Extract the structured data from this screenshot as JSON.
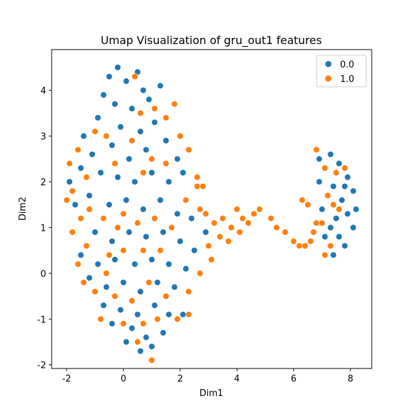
{
  "chart_data": {
    "type": "scatter",
    "title": "Umap Visualization of  gru_out1 features",
    "x_label": "Dim1",
    "y_label": "Dim2",
    "xlim": [
      -2.53,
      8.75
    ],
    "ylim": [
      -2.08,
      4.89
    ],
    "xticks": [
      -2,
      0,
      2,
      4,
      6,
      8
    ],
    "yticks": [
      -2,
      -1,
      0,
      1,
      2,
      3,
      4
    ],
    "grid": false,
    "legend": "upper right",
    "series": [
      {
        "name": "0.0",
        "color": "#1f77b4",
        "x": [
          -0.5,
          -0.2,
          0.1,
          0.5,
          0.7,
          -0.7,
          -0.3,
          0.3,
          0.9,
          1.3,
          1.1,
          0.6,
          -0.1,
          -0.9,
          -1.4,
          -1.1,
          -0.4,
          0.2,
          0.8,
          1.5,
          1.9,
          2.1,
          1.6,
          1.0,
          0.4,
          -0.2,
          -0.8,
          -1.5,
          -1.9,
          -1.7,
          -1.2,
          -0.5,
          0.1,
          0.7,
          1.3,
          1.9,
          2.4,
          2.9,
          2.5,
          2.0,
          1.4,
          0.8,
          0.2,
          -0.4,
          -1.0,
          -1.5,
          -0.9,
          -0.3,
          0.4,
          1.0,
          1.6,
          2.2,
          1.8,
          1.2,
          0.6,
          0.0,
          -0.6,
          -1.2,
          -0.7,
          -0.1,
          0.5,
          1.1,
          1.6,
          2.1,
          1.4,
          0.8,
          0.3,
          -0.4,
          0.6,
          1.0,
          0.1,
          6.9,
          7.3,
          7.6,
          7.9,
          8.1,
          8.2,
          8.1,
          7.8,
          7.4,
          7.1,
          7.0,
          6.9,
          7.4,
          7.7,
          7.5,
          7.9,
          7.3,
          7.6,
          7.8
        ],
        "values": [
          4.3,
          4.5,
          4.2,
          4.4,
          4.0,
          3.9,
          3.7,
          3.6,
          3.8,
          4.1,
          3.3,
          3.1,
          3.2,
          3.4,
          3.0,
          2.6,
          2.8,
          2.5,
          2.7,
          2.9,
          2.5,
          2.2,
          2.0,
          2.2,
          2.0,
          2.1,
          2.2,
          2.3,
          2.0,
          1.5,
          1.7,
          1.5,
          1.6,
          1.4,
          1.6,
          1.3,
          1.2,
          0.9,
          0.5,
          0.7,
          0.9,
          0.8,
          0.9,
          0.7,
          0.9,
          0.4,
          0.2,
          0.3,
          0.2,
          0.3,
          0.2,
          0.1,
          -0.3,
          -0.2,
          -0.4,
          -0.2,
          -0.3,
          -0.1,
          -0.7,
          -0.8,
          -0.9,
          -0.7,
          -0.9,
          -0.9,
          -1.3,
          -1.4,
          -1.2,
          -1.1,
          -1.7,
          -1.6,
          -1.5,
          2.5,
          2.6,
          2.4,
          2.1,
          1.8,
          1.4,
          1.0,
          0.6,
          0.4,
          0.8,
          1.4,
          2.0,
          1.9,
          1.6,
          1.2,
          1.3,
          1.0,
          0.8,
          1.9
        ]
      },
      {
        "name": "1.0",
        "color": "#ff7f0e",
        "x": [
          -1.9,
          -1.6,
          -1.3,
          -1.8,
          -2.0,
          -1.5,
          -1.8,
          -1.3,
          -1.6,
          -1.4,
          -1.0,
          -0.6,
          -0.2,
          -0.7,
          -0.3,
          0.3,
          0.6,
          1.1,
          1.5,
          1.8,
          2.0,
          2.3,
          0.4,
          -0.6,
          -1.0,
          -1.2,
          0.0,
          0.5,
          1.1,
          1.7,
          2.2,
          2.6,
          2.7,
          2.9,
          3.2,
          3.0,
          3.4,
          3.1,
          2.7,
          2.3,
          1.9,
          2.3,
          1.5,
          0.9,
          0.3,
          -0.3,
          -0.8,
          0.0,
          0.7,
          1.2,
          1.0,
          0.5,
          1.3,
          0.7,
          0.0,
          -0.5,
          1.0,
          0.7,
          1.5,
          2.6,
          2.8,
          3.5,
          3.8,
          4.0,
          4.2,
          4.4,
          4.6,
          4.8,
          5.2,
          5.4,
          5.7,
          6.0,
          6.2,
          6.4,
          6.6,
          6.7,
          6.5,
          6.8,
          3.7,
          4.1,
          6.3,
          6.8,
          7.1,
          7.5,
          7.2,
          7.0,
          7.3,
          7.6,
          7.8,
          7.1,
          7.4
        ],
        "values": [
          2.4,
          2.7,
          2.1,
          1.8,
          1.6,
          1.2,
          0.9,
          0.6,
          0.2,
          -0.2,
          -0.4,
          0.0,
          1.0,
          1.2,
          2.4,
          2.9,
          3.5,
          3.6,
          3.4,
          3.7,
          3.0,
          2.7,
          4.3,
          3.0,
          3.1,
          1.4,
          1.3,
          1.1,
          1.2,
          1.0,
          1.6,
          1.9,
          1.4,
          1.3,
          1.1,
          0.6,
          0.8,
          0.3,
          0.0,
          -0.4,
          -1.0,
          -0.9,
          -0.5,
          -0.2,
          -0.6,
          -0.5,
          -1.0,
          -1.1,
          -1.1,
          -1.0,
          -1.9,
          -1.5,
          0.5,
          0.5,
          0.5,
          0.4,
          2.5,
          2.2,
          2.4,
          2.1,
          1.9,
          1.2,
          1.0,
          1.4,
          1.2,
          1.1,
          1.3,
          1.4,
          1.2,
          1.0,
          0.9,
          0.7,
          0.6,
          0.6,
          0.7,
          0.9,
          1.5,
          1.1,
          0.7,
          0.9,
          1.6,
          2.7,
          2.3,
          2.2,
          1.7,
          1.1,
          0.6,
          1.4,
          2.3,
          0.4,
          1.5
        ]
      }
    ]
  }
}
